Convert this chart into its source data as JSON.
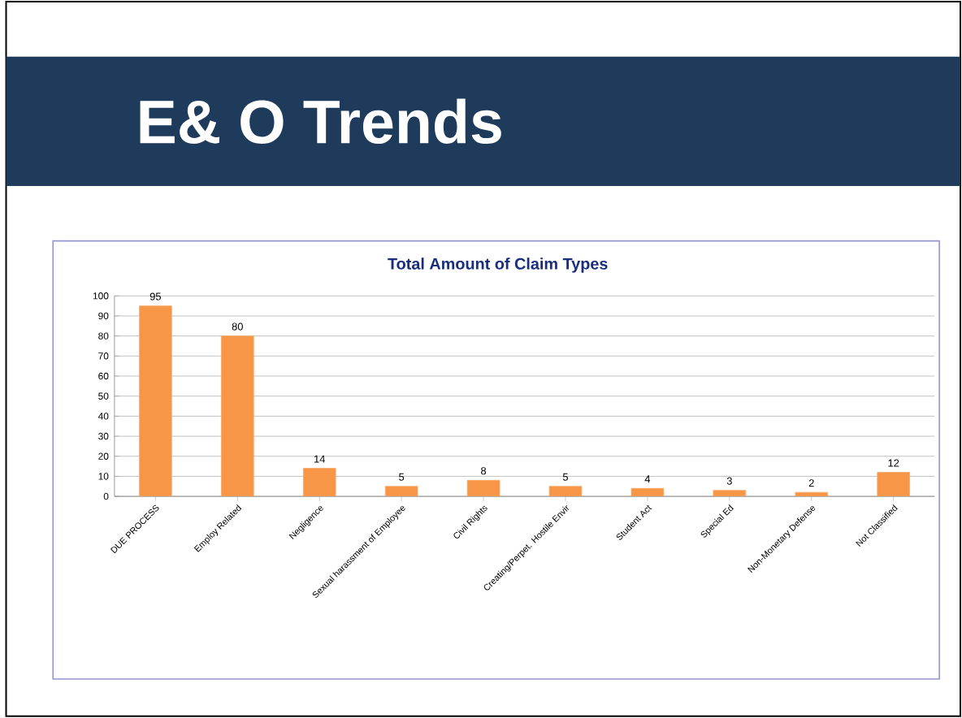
{
  "chart_data": {
    "type": "bar",
    "title": "E& O Trends",
    "subtitle": "Total Amount of Claim Types",
    "categories": [
      "DUE PROCESS",
      "Employ Related",
      "Negligence",
      "Sexual harassment of Employee",
      "Civil Rights",
      "Creating/Perpet. Hostile Envir",
      "Student Act",
      "Special Ed",
      "Non-Monetary Defense",
      "Not Classified"
    ],
    "values": [
      95,
      80,
      14,
      5,
      8,
      5,
      4,
      3,
      2,
      12
    ],
    "color": "#f79646",
    "ylim": [
      0,
      100
    ],
    "yticks": [
      0,
      10,
      20,
      30,
      40,
      50,
      60,
      70,
      80,
      90,
      100
    ],
    "grid": "y",
    "data_labels": true
  }
}
